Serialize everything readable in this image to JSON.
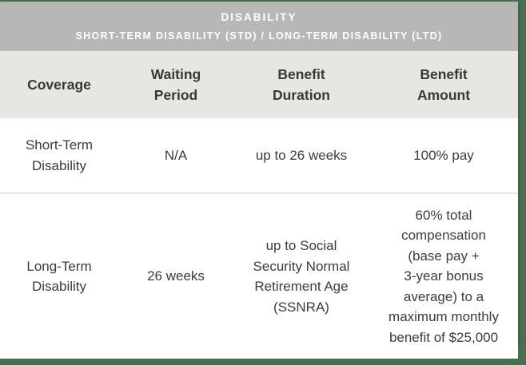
{
  "colors": {
    "frame_green": "#4a6e50",
    "title_bar_gray": "#b9b7b5",
    "header_row_gray": "#e8e6e3",
    "text_dark": "#3d3b3a",
    "divider": "#e7e5e3"
  },
  "title_bar": {
    "title": "DISABILITY",
    "subtitle": "SHORT-TERM DISABILITY (STD) / LONG-TERM DISABILITY (LTD)"
  },
  "table": {
    "header": {
      "coverage": "Coverage",
      "waiting_period": "Waiting\nPeriod",
      "benefit_duration": "Benefit\nDuration",
      "benefit_amount": "Benefit\nAmount"
    },
    "rows": [
      {
        "coverage": "Short-Term\nDisability",
        "waiting_period": "N/A",
        "benefit_duration": "up to 26 weeks",
        "benefit_amount": "100% pay"
      },
      {
        "coverage": "Long-Term\nDisability",
        "waiting_period": "26 weeks",
        "benefit_duration": "up to Social\nSecurity Normal\nRetirement Age\n(SSNRA)",
        "benefit_amount": "60% total\ncompensation\n(base pay +\n3-year bonus\naverage) to a\nmaximum monthly\nbenefit of $25,000"
      }
    ]
  }
}
